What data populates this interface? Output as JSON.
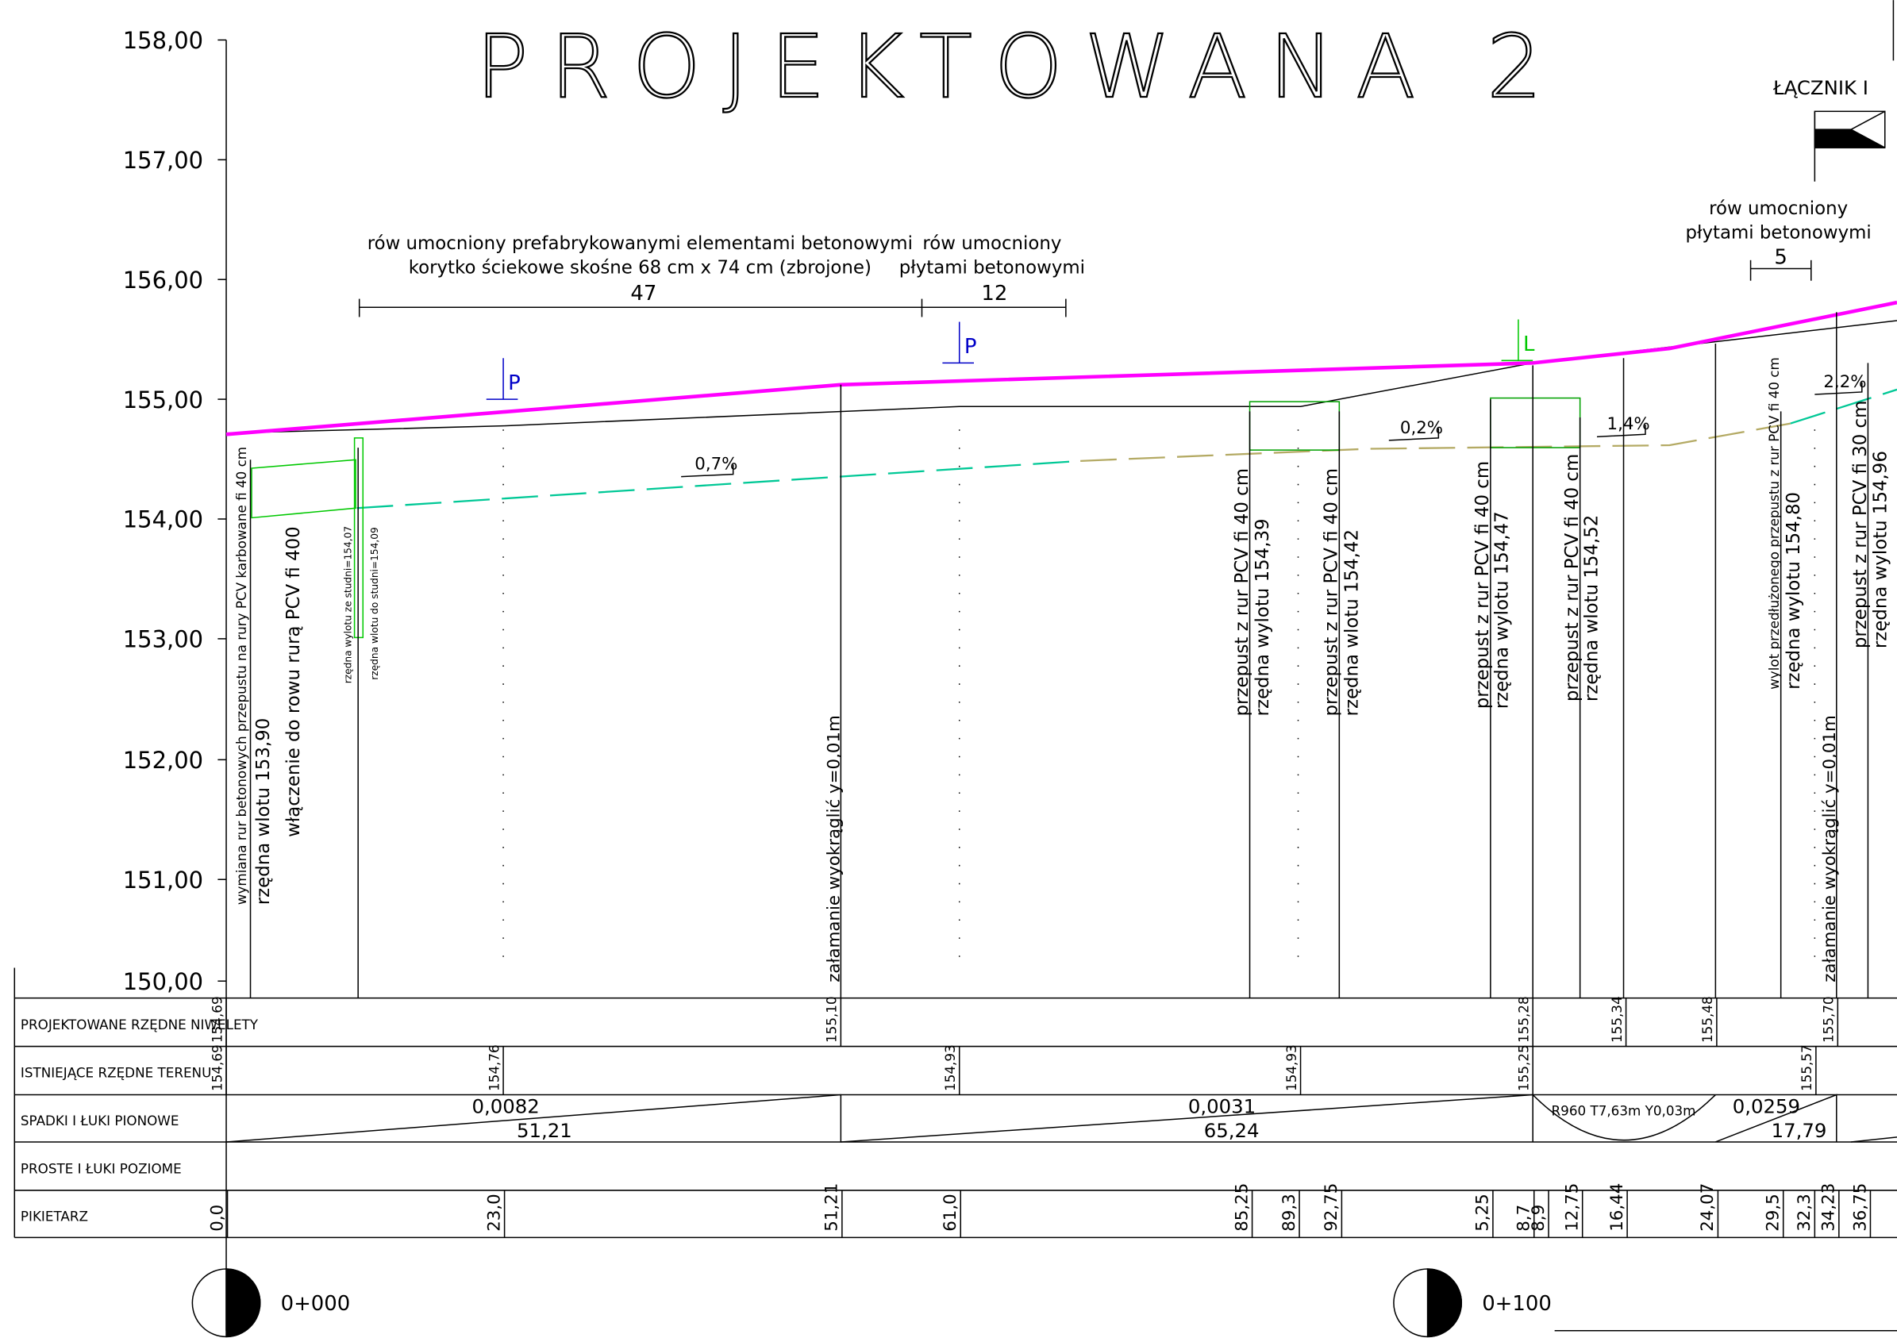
{
  "title": "PROJEKTOWANA 2",
  "connector": "ŁĄCZNIK I",
  "axis_labels": [
    "158,00",
    "157,00",
    "156,00",
    "155,00",
    "154,00",
    "153,00",
    "152,00",
    "151,00",
    "150,00"
  ],
  "annotations": [
    {
      "lines": [
        "rów umocniony prefabrykowanymi elementami betonowymi",
        "korytko ściekowe skośne 68 cm x 74 cm (zbrojone)"
      ],
      "length": "47"
    },
    {
      "lines": [
        "rów umocniony",
        "płytami betonowymi"
      ],
      "length": "12"
    },
    {
      "lines": [
        "rów umocniony",
        "płytami betonowymi"
      ],
      "length": "5"
    }
  ],
  "markers": [
    "P",
    "P",
    "L"
  ],
  "slopes": [
    "0,7%",
    "0,2%",
    "1,4%",
    "2,2%"
  ],
  "callouts": [
    "wymiana rur betonowych przepustu na rury PCV karbowane fi 40 cm",
    "rzędna wlotu 153,90",
    "włączenie do rowu rurą PCV fi 400",
    "rzędna wylotu ze studni=154,07",
    "rzędna wlotu do studni=154,09",
    "załamanie wyokrąglić y=0,01m",
    "przepust z rur PCV fi 40 cm",
    "rzędna wylotu 154,39",
    "przepust z rur PCV fi 40 cm",
    "rzędna wlotu 154,42",
    "przepust z rur PCV fi 40 cm",
    "rzędna wylotu 154,47",
    "przepust z rur PCV fi 40 cm",
    "rzędna wlotu 154,52",
    "wylot przedłużonego przepustu z rur PCV fi 40 cm",
    "rzędna wylotu 154,80",
    "załamanie wyokrąglić y=0,01m",
    "przepust z rur PCV fi 30 cm",
    "rzędna wylotu 154,96"
  ],
  "profile_table": {
    "row_labels": [
      "PROJEKTOWANE RZĘDNE NIWELETY",
      "ISTNIEJĄCE RZĘDNE TERENU",
      "SPADKI I ŁUKI PIONOWE",
      "PROSTE I ŁUKI POZIOME",
      "PIKIETARZ"
    ],
    "design_levels": [
      "154,69",
      "155,10",
      "155,28",
      "155,34",
      "155,48",
      "155,70"
    ],
    "terrain_levels": [
      "154,69",
      "154,76",
      "154,93",
      "154,93",
      "155,25",
      "155,57"
    ],
    "grades": [
      {
        "grade": "0,0082",
        "length": "51,21"
      },
      {
        "grade": "0,0031",
        "length": "65,24"
      },
      {
        "grade": "0,0259",
        "length": "17,79"
      }
    ],
    "vertical_curve": "R960 T7,63m Y0,03m",
    "chainage": [
      "0,0",
      "23,0",
      "51,21",
      "61,0",
      "85,25",
      "89,3",
      "92,75",
      "5,25",
      "8,7",
      "8,9",
      "12,75",
      "16,44",
      "24,07",
      "29,5",
      "32,3",
      "34,23",
      "36,75"
    ]
  },
  "stations": [
    "0+000",
    "0+100"
  ]
}
